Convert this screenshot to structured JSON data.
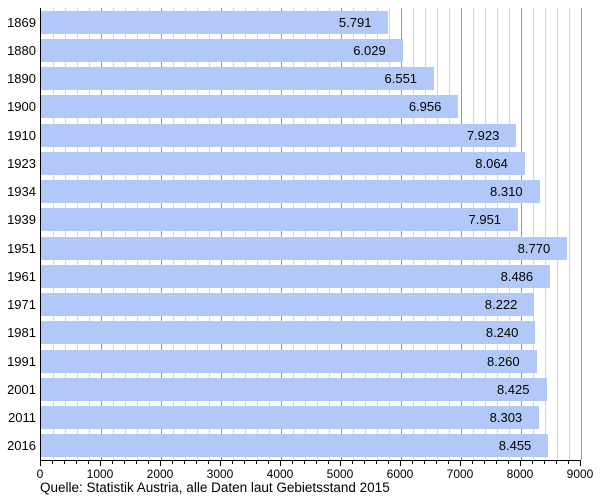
{
  "chart_data": {
    "type": "bar",
    "orientation": "horizontal",
    "title": "",
    "xlabel": "",
    "ylabel": "",
    "categories": [
      "1869",
      "1880",
      "1890",
      "1900",
      "1910",
      "1923",
      "1934",
      "1939",
      "1951",
      "1961",
      "1971",
      "1981",
      "1991",
      "2001",
      "2011",
      "2016"
    ],
    "values": [
      5791,
      6029,
      6551,
      6956,
      7923,
      8064,
      8310,
      7951,
      8770,
      8486,
      8222,
      8240,
      8260,
      8425,
      8303,
      8455
    ],
    "value_labels": [
      "5.791",
      "6.029",
      "6.551",
      "6.956",
      "7.923",
      "8.064",
      "8.310",
      "7.951",
      "8.770",
      "8.486",
      "8.222",
      "8.240",
      "8.260",
      "8.425",
      "8.303",
      "8.455"
    ],
    "xlim": [
      0,
      9000
    ],
    "x_major_tick_step": 1000,
    "x_minor_tick_step": 200,
    "x_tick_labels": [
      "0",
      "1000",
      "2000",
      "3000",
      "4000",
      "5000",
      "6000",
      "7000",
      "8000",
      "9000"
    ],
    "grid": "vertical",
    "legend": "none",
    "caption": "Quelle: Statistik Austria, alle Daten laut Gebietsstand 2015",
    "colors": {
      "bar_fill": "#b1c8f9",
      "grid_minor": "#d4d4d4",
      "grid_major": "#9a9a9a",
      "axis": "#000000",
      "text": "#000000",
      "background": "#ffffff"
    }
  }
}
